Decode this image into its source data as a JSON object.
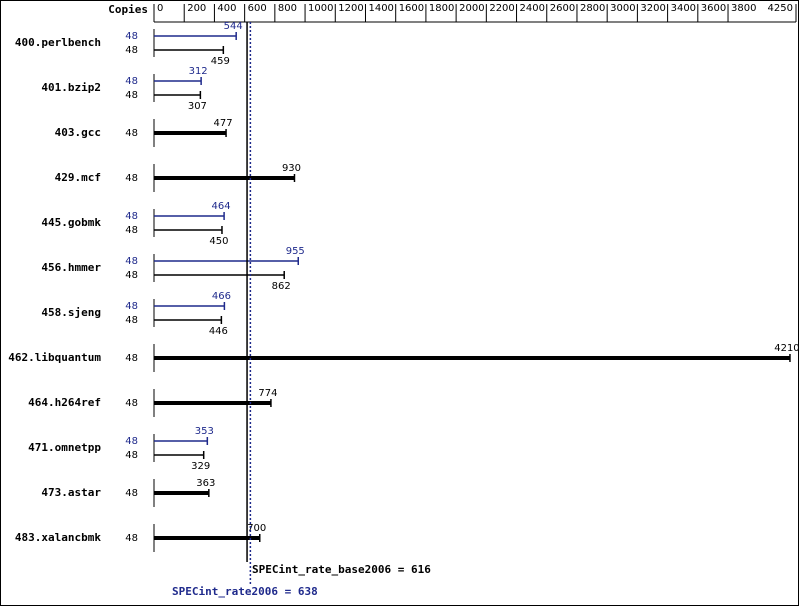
{
  "chart_data": {
    "type": "spec-bar",
    "axis_label": "Copies",
    "xlim": [
      0,
      4250
    ],
    "xticks": [
      0,
      200,
      400,
      600,
      800,
      1000,
      1200,
      1400,
      1600,
      1800,
      2000,
      2200,
      2400,
      2600,
      2800,
      3000,
      3200,
      3400,
      3600,
      3800,
      4250
    ],
    "peak_color": "#1f2a8c",
    "base_color": "#000000",
    "benchmarks": [
      {
        "name": "400.perlbench",
        "peak_copies": 48,
        "peak": 544,
        "base_copies": 48,
        "base": 459
      },
      {
        "name": "401.bzip2",
        "peak_copies": 48,
        "peak": 312,
        "base_copies": 48,
        "base": 307
      },
      {
        "name": "403.gcc",
        "base_copies": 48,
        "base": 477
      },
      {
        "name": "429.mcf",
        "base_copies": 48,
        "base": 930
      },
      {
        "name": "445.gobmk",
        "peak_copies": 48,
        "peak": 464,
        "base_copies": 48,
        "base": 450
      },
      {
        "name": "456.hmmer",
        "peak_copies": 48,
        "peak": 955,
        "base_copies": 48,
        "base": 862
      },
      {
        "name": "458.sjeng",
        "peak_copies": 48,
        "peak": 466,
        "base_copies": 48,
        "base": 446
      },
      {
        "name": "462.libquantum",
        "base_copies": 48,
        "base": 4210
      },
      {
        "name": "464.h264ref",
        "base_copies": 48,
        "base": 774
      },
      {
        "name": "471.omnetpp",
        "peak_copies": 48,
        "peak": 353,
        "base_copies": 48,
        "base": 329
      },
      {
        "name": "473.astar",
        "base_copies": 48,
        "base": 363
      },
      {
        "name": "483.xalancbmk",
        "base_copies": 48,
        "base": 700
      }
    ],
    "base_mean": {
      "label": "SPECint_rate_base2006 = 616",
      "value": 616
    },
    "peak_mean": {
      "label": "SPECint_rate2006 = 638",
      "value": 638
    }
  }
}
